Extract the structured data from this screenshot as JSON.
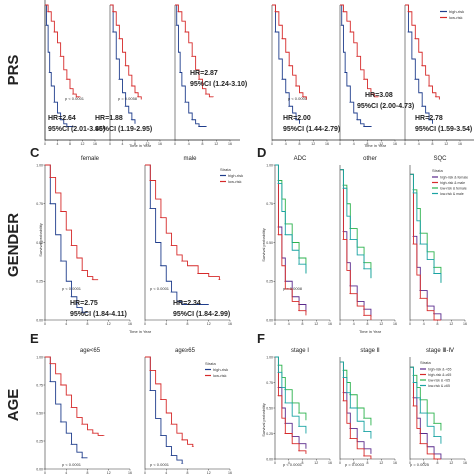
{
  "colors": {
    "high": "#1f3d8c",
    "low": "#d62a2a",
    "green": "#2bb24c",
    "teal": "#1aa3a3",
    "dark": "#333333",
    "purple": "#5a2a8c"
  },
  "row_titles": [
    "PRS",
    "GENDER",
    "AGE"
  ],
  "panel_letters": {
    "C": "C",
    "D": "D",
    "E": "E",
    "F": "F"
  },
  "common": {
    "ylabel": "Survival probability",
    "xlabel": "Time in Year",
    "strata_title": "Strata",
    "legend_high": "high-risk",
    "legend_low": "low-risk",
    "legend_4": [
      "high-risk & female",
      "high-risk & male",
      "low-risk & female",
      "low-risk & male"
    ],
    "legend_age4": [
      "high-risk & <65",
      "high-risk & ≥65",
      "low-risk & <65",
      "low-risk & ≥65"
    ],
    "ytick_labels": [
      "1.00",
      "0.75",
      "0.50",
      "0.25",
      "0.00"
    ],
    "xtick_labels": [
      "0",
      "4",
      "8",
      "12",
      "16"
    ]
  },
  "annotations": {
    "a_p1": "p < 0.0001",
    "a_p2": "p = 0.0058",
    "a_hr1": "HR=2.64",
    "a_ci1": "95%CI (2.01-3.46)",
    "a_hr2": "HR=1.88",
    "a_ci2": "95%CI (1.19-2.95)",
    "a_hr3": "HR=2.87",
    "a_ci3": "95%CI (1.24-3.10)",
    "b_p1": "p < 0.0001",
    "b_hr1": "HR=3.08",
    "b_ci1": "95%CI (2.00-4.73)",
    "b_hr2": "HR=2.00",
    "b_ci2": "95%CI (1.44-2.79)",
    "b_hr3": "HR=2.78",
    "b_ci3": "95%CI (1.59-3.54)",
    "c_female": "female",
    "c_male": "male",
    "c_p1": "p < 0.0001",
    "c_p2": "p < 0.0001",
    "c_hr1": "HR=2.75",
    "c_ci1": "95%CI (1.84-4.11)",
    "c_hr2": "HR=2.34",
    "c_ci2": "95%CI (1.84-2.99)",
    "d_adc": "ADC",
    "d_other": "other",
    "d_sqc": "SQC",
    "d_p1": "p = 0.0008",
    "e_lt65": "age<65",
    "e_ge65": "age≥65",
    "e_p1": "p < 0.0001",
    "e_p2": "p < 0.0001",
    "f_s1": "stage Ⅰ",
    "f_s2": "stage Ⅱ",
    "f_s3": "stage Ⅲ-Ⅳ",
    "f_p1": "p < 0.0001",
    "f_p2": "p = 0.0003",
    "f_p3": "p = 0.0025"
  },
  "chart_data": [
    {
      "type": "line",
      "id": "A",
      "row": "PRS",
      "ylim": [
        0,
        1
      ],
      "xlim": [
        0,
        16
      ],
      "series": [
        {
          "name": "high-risk",
          "x": [
            0,
            0.5,
            1,
            1.5,
            2,
            3,
            4,
            5,
            6,
            7,
            8,
            9
          ],
          "y": [
            1,
            0.85,
            0.65,
            0.5,
            0.4,
            0.28,
            0.2,
            0.15,
            0.12,
            0.1,
            0.1,
            0.1
          ]
        },
        {
          "name": "low-risk",
          "x": [
            0,
            1,
            2,
            3,
            4,
            5,
            6,
            7,
            8,
            9,
            10,
            11
          ],
          "y": [
            1,
            0.95,
            0.88,
            0.8,
            0.72,
            0.62,
            0.52,
            0.45,
            0.38,
            0.34,
            0.32,
            0.32
          ]
        }
      ]
    },
    {
      "type": "line",
      "id": "B",
      "row": "PRS",
      "ylim": [
        0,
        1
      ],
      "xlim": [
        0,
        16
      ],
      "series": [
        {
          "name": "high-risk",
          "x": [
            0,
            1,
            2,
            3,
            4,
            5,
            6,
            7,
            8
          ],
          "y": [
            1,
            0.8,
            0.6,
            0.45,
            0.35,
            0.25,
            0.2,
            0.15,
            0.12
          ]
        },
        {
          "name": "low-risk",
          "x": [
            0,
            1,
            2,
            3,
            4,
            5,
            6,
            7,
            8,
            9,
            10
          ],
          "y": [
            1,
            0.95,
            0.85,
            0.75,
            0.65,
            0.55,
            0.48,
            0.4,
            0.35,
            0.32,
            0.3
          ]
        }
      ]
    },
    {
      "type": "line",
      "id": "C-female",
      "row": "GENDER",
      "ylim": [
        0,
        1
      ],
      "xlim": [
        0,
        16
      ],
      "series": [
        {
          "name": "high-risk",
          "x": [
            0,
            1,
            2,
            3,
            4,
            5,
            6,
            7,
            8
          ],
          "y": [
            1,
            0.75,
            0.55,
            0.38,
            0.25,
            0.15,
            0.08,
            0.05,
            0.05
          ]
        },
        {
          "name": "low-risk",
          "x": [
            0,
            1,
            2,
            3,
            4,
            5,
            6,
            7,
            8,
            9,
            10
          ],
          "y": [
            1,
            0.92,
            0.82,
            0.7,
            0.58,
            0.48,
            0.4,
            0.32,
            0.28,
            0.26,
            0.26
          ]
        }
      ]
    },
    {
      "type": "line",
      "id": "C-male",
      "row": "GENDER",
      "ylim": [
        0,
        1
      ],
      "xlim": [
        0,
        16
      ],
      "series": [
        {
          "name": "high-risk",
          "x": [
            0,
            1,
            2,
            3,
            4,
            5,
            6,
            7,
            8,
            10,
            12
          ],
          "y": [
            1,
            0.72,
            0.5,
            0.35,
            0.25,
            0.18,
            0.12,
            0.1,
            0.1,
            0.1,
            0.1
          ]
        },
        {
          "name": "low-risk",
          "x": [
            0,
            1,
            2,
            3,
            4,
            5,
            6,
            7,
            8,
            10,
            12,
            14
          ],
          "y": [
            1,
            0.9,
            0.78,
            0.66,
            0.56,
            0.48,
            0.42,
            0.38,
            0.35,
            0.3,
            0.28,
            0.26
          ]
        }
      ]
    },
    {
      "type": "line",
      "id": "E-lt65",
      "row": "AGE",
      "ylim": [
        0,
        1
      ],
      "xlim": [
        0,
        16
      ],
      "series": [
        {
          "name": "high-risk",
          "x": [
            0,
            1,
            2,
            3,
            4,
            5,
            6,
            7,
            8
          ],
          "y": [
            1,
            0.78,
            0.58,
            0.42,
            0.32,
            0.22,
            0.15,
            0.1,
            0.1
          ]
        },
        {
          "name": "low-risk",
          "x": [
            0,
            1,
            2,
            3,
            4,
            5,
            6,
            7,
            8,
            9,
            10,
            11
          ],
          "y": [
            1,
            0.94,
            0.85,
            0.75,
            0.66,
            0.55,
            0.46,
            0.4,
            0.35,
            0.32,
            0.3,
            0.3
          ]
        }
      ]
    },
    {
      "type": "line",
      "id": "E-ge65",
      "row": "AGE",
      "ylim": [
        0,
        1
      ],
      "xlim": [
        0,
        16
      ],
      "series": [
        {
          "name": "high-risk",
          "x": [
            0,
            1,
            2,
            3,
            4,
            5,
            6,
            7
          ],
          "y": [
            1,
            0.7,
            0.45,
            0.3,
            0.2,
            0.12,
            0.08,
            0.05
          ]
        },
        {
          "name": "low-risk",
          "x": [
            0,
            1,
            2,
            3,
            4,
            5,
            6,
            7,
            8,
            9
          ],
          "y": [
            1,
            0.88,
            0.76,
            0.62,
            0.5,
            0.4,
            0.32,
            0.26,
            0.22,
            0.2
          ]
        }
      ]
    }
  ]
}
